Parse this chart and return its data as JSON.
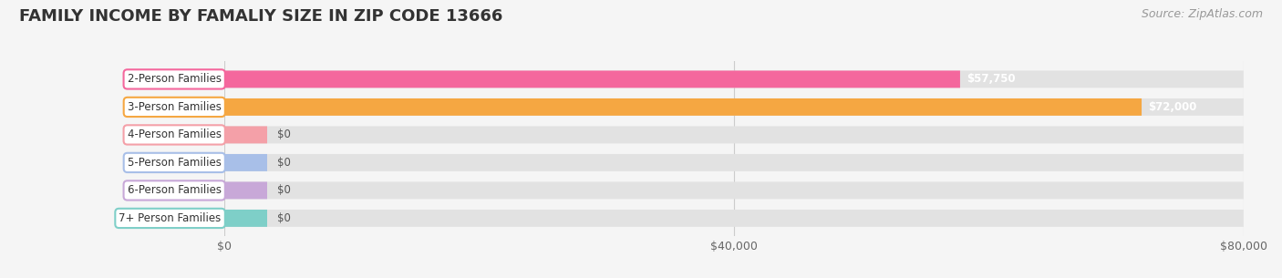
{
  "title": "FAMILY INCOME BY FAMALIY SIZE IN ZIP CODE 13666",
  "source": "Source: ZipAtlas.com",
  "categories": [
    "2-Person Families",
    "3-Person Families",
    "4-Person Families",
    "5-Person Families",
    "6-Person Families",
    "7+ Person Families"
  ],
  "values": [
    57750,
    72000,
    0,
    0,
    0,
    0
  ],
  "bar_colors": [
    "#f4679d",
    "#f5a742",
    "#f4a0a8",
    "#a8bfe8",
    "#c8a8d8",
    "#7ecfc8"
  ],
  "value_labels": [
    "$57,750",
    "$72,000",
    "$0",
    "$0",
    "$0",
    "$0"
  ],
  "xlim": [
    0,
    80000
  ],
  "xticks": [
    0,
    40000,
    80000
  ],
  "xtick_labels": [
    "$0",
    "$40,000",
    "$80,000"
  ],
  "background_color": "#f5f5f5",
  "bar_background_color": "#e2e2e2",
  "title_fontsize": 13,
  "source_fontsize": 9,
  "label_fontsize": 8.5,
  "value_fontsize": 8.5,
  "bar_height": 0.6
}
